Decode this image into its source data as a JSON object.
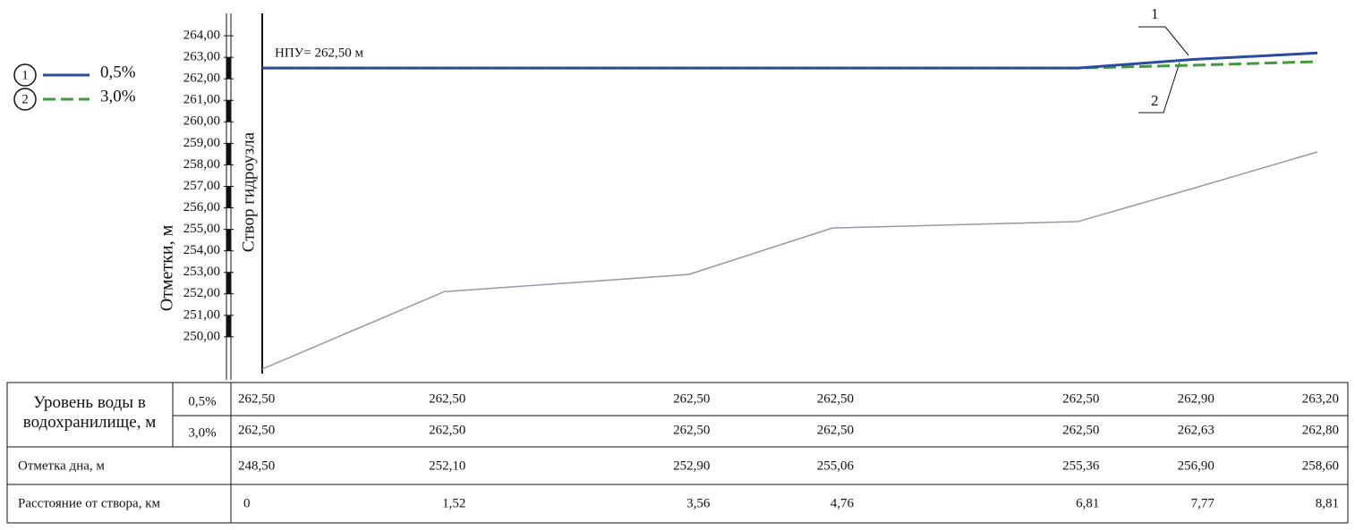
{
  "chart_data": {
    "type": "line",
    "y_label": "Отметки, м",
    "annotations": [
      "НПУ= 262,50 м",
      "Створ гидроузла"
    ],
    "callouts": [
      "1",
      "2"
    ],
    "water_group_label": "Уровень воды в водохранилище, м",
    "x_label": "Расстояние от створа, км",
    "x": [
      0,
      1.52,
      3.56,
      4.76,
      6.81,
      7.77,
      8.81
    ],
    "x_labels": [
      "0",
      "1,52",
      "3,56",
      "4,76",
      "6,81",
      "7,77",
      "8,81"
    ],
    "xlim": [
      0,
      8.81
    ],
    "ylim": [
      248,
      265
    ],
    "yticks": [
      {
        "value": 250,
        "label": "250,00"
      },
      {
        "value": 251,
        "label": "251,00"
      },
      {
        "value": 252,
        "label": "252,00"
      },
      {
        "value": 253,
        "label": "253,00"
      },
      {
        "value": 254,
        "label": "254,00"
      },
      {
        "value": 255,
        "label": "255,00"
      },
      {
        "value": 256,
        "label": "256,00"
      },
      {
        "value": 257,
        "label": "257,00"
      },
      {
        "value": 258,
        "label": "258,00"
      },
      {
        "value": 259,
        "label": "259,00"
      },
      {
        "value": 260,
        "label": "260,00"
      },
      {
        "value": 261,
        "label": "261,00"
      },
      {
        "value": 262,
        "label": "262,00"
      },
      {
        "value": 263,
        "label": "263,00"
      },
      {
        "value": 264,
        "label": "264,00"
      }
    ],
    "series": [
      {
        "name": "0,5%",
        "marker": "1",
        "color": "#2b4c9e",
        "dash": false,
        "values": [
          262.5,
          262.5,
          262.5,
          262.5,
          262.5,
          262.9,
          263.2
        ],
        "value_labels": [
          "262,50",
          "262,50",
          "262,50",
          "262,50",
          "262,50",
          "262,90",
          "263,20"
        ]
      },
      {
        "name": "3,0%",
        "marker": "2",
        "color": "#3f9a3a",
        "dash": true,
        "values": [
          262.5,
          262.5,
          262.5,
          262.5,
          262.5,
          262.63,
          262.8
        ],
        "value_labels": [
          "262,50",
          "262,50",
          "262,50",
          "262,50",
          "262,50",
          "262,63",
          "262,80"
        ]
      },
      {
        "name": "Отметка дна, м",
        "color": "#9b96a8",
        "dash": false,
        "values": [
          248.5,
          252.1,
          252.9,
          255.06,
          255.36,
          256.9,
          258.6
        ],
        "value_labels": [
          "248,50",
          "252,10",
          "252,90",
          "255,06",
          "255,36",
          "256,90",
          "258,60"
        ]
      }
    ]
  }
}
